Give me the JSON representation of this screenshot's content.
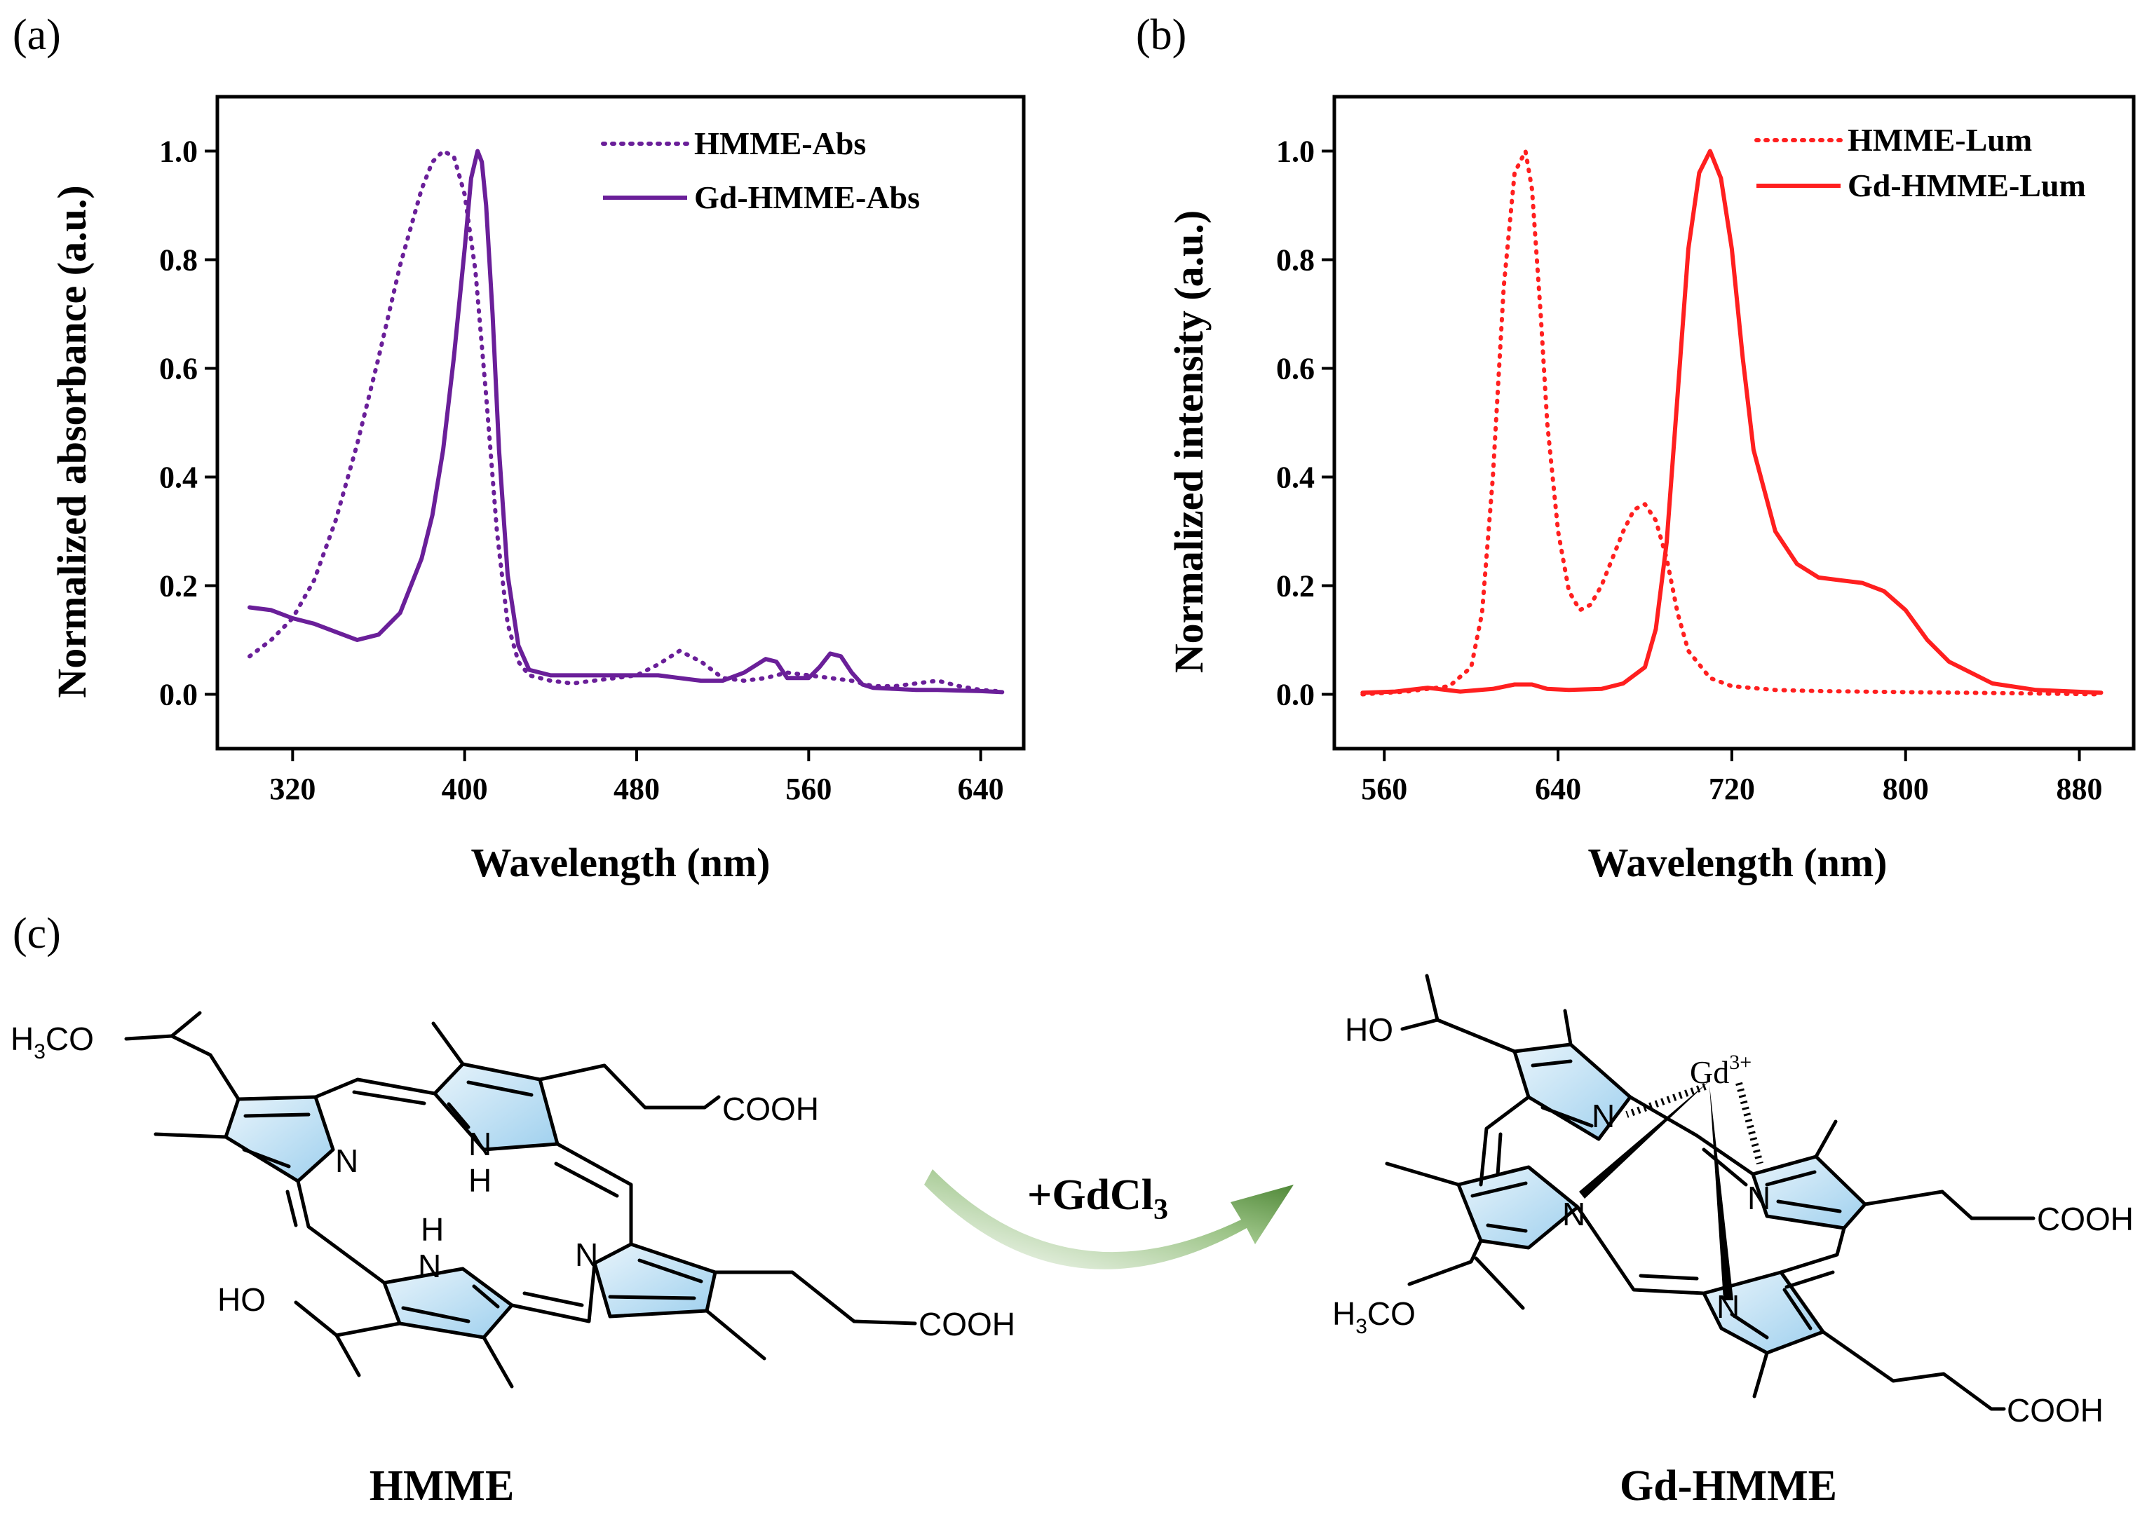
{
  "panels": {
    "a": "(a)",
    "b": "(b)",
    "c": "(c)"
  },
  "chart_data": [
    {
      "type": "line",
      "panel": "(a)",
      "xlabel": "Wavelength (nm)",
      "ylabel": "Normalized absorbance (a.u.)",
      "xlim": [
        285,
        660
      ],
      "ylim": [
        -0.1,
        1.1
      ],
      "xticks": [
        320,
        400,
        480,
        560,
        640
      ],
      "yticks": [
        0.0,
        0.2,
        0.4,
        0.6,
        0.8,
        1.0
      ],
      "legend_position": "top-right",
      "series": [
        {
          "name": "HMME-Abs",
          "style": "dotted",
          "color": "#6a1f99",
          "x": [
            300,
            310,
            320,
            330,
            340,
            350,
            360,
            370,
            380,
            385,
            390,
            395,
            400,
            405,
            410,
            415,
            420,
            425,
            430,
            440,
            450,
            460,
            470,
            480,
            490,
            500,
            510,
            520,
            530,
            540,
            550,
            560,
            570,
            580,
            590,
            600,
            610,
            620,
            630,
            640,
            650
          ],
          "y": [
            0.07,
            0.1,
            0.14,
            0.21,
            0.32,
            0.46,
            0.62,
            0.79,
            0.93,
            0.98,
            1.0,
            0.99,
            0.92,
            0.78,
            0.55,
            0.3,
            0.13,
            0.06,
            0.035,
            0.025,
            0.02,
            0.025,
            0.03,
            0.035,
            0.055,
            0.08,
            0.06,
            0.03,
            0.025,
            0.03,
            0.04,
            0.035,
            0.03,
            0.025,
            0.015,
            0.015,
            0.02,
            0.025,
            0.015,
            0.008,
            0.005
          ]
        },
        {
          "name": "Gd-HMME-Abs",
          "style": "solid",
          "color": "#6a1f99",
          "x": [
            300,
            310,
            320,
            330,
            340,
            350,
            360,
            370,
            380,
            385,
            390,
            395,
            400,
            403,
            406,
            408,
            410,
            413,
            416,
            420,
            425,
            430,
            440,
            450,
            460,
            470,
            480,
            490,
            500,
            510,
            520,
            530,
            540,
            545,
            550,
            560,
            565,
            570,
            575,
            580,
            585,
            590,
            600,
            610,
            620,
            630,
            640,
            650
          ],
          "y": [
            0.16,
            0.155,
            0.14,
            0.13,
            0.115,
            0.1,
            0.11,
            0.15,
            0.25,
            0.33,
            0.45,
            0.62,
            0.82,
            0.95,
            1.0,
            0.98,
            0.9,
            0.7,
            0.45,
            0.22,
            0.09,
            0.045,
            0.035,
            0.035,
            0.035,
            0.035,
            0.035,
            0.035,
            0.03,
            0.025,
            0.025,
            0.04,
            0.065,
            0.06,
            0.03,
            0.03,
            0.05,
            0.075,
            0.07,
            0.04,
            0.018,
            0.012,
            0.01,
            0.008,
            0.008,
            0.007,
            0.006,
            0.004
          ]
        }
      ]
    },
    {
      "type": "line",
      "panel": "(b)",
      "xlabel": "Wavelength (nm)",
      "ylabel": "Normalized intensity (a.u.)",
      "xlim": [
        537,
        905
      ],
      "ylim": [
        -0.1,
        1.1
      ],
      "xticks": [
        560,
        640,
        720,
        800,
        880
      ],
      "yticks": [
        0.0,
        0.2,
        0.4,
        0.6,
        0.8,
        1.0
      ],
      "legend_position": "top-right",
      "series": [
        {
          "name": "HMME-Lum",
          "style": "dotted",
          "color": "#ff1f1f",
          "x": [
            550,
            570,
            590,
            600,
            605,
            610,
            615,
            620,
            625,
            628,
            632,
            635,
            640,
            645,
            650,
            655,
            660,
            665,
            670,
            675,
            680,
            685,
            690,
            695,
            700,
            710,
            720,
            740,
            760,
            800,
            850,
            890
          ],
          "y": [
            0.0,
            0.005,
            0.015,
            0.05,
            0.15,
            0.4,
            0.75,
            0.96,
            1.0,
            0.93,
            0.7,
            0.5,
            0.3,
            0.19,
            0.155,
            0.165,
            0.2,
            0.25,
            0.3,
            0.34,
            0.35,
            0.32,
            0.25,
            0.15,
            0.08,
            0.03,
            0.015,
            0.008,
            0.006,
            0.004,
            0.002,
            0.0
          ]
        },
        {
          "name": "Gd-HMME-Lum",
          "style": "solid",
          "color": "#ff1f1f",
          "x": [
            550,
            565,
            580,
            595,
            610,
            620,
            628,
            635,
            645,
            660,
            670,
            680,
            685,
            690,
            695,
            700,
            705,
            710,
            715,
            720,
            725,
            730,
            740,
            750,
            760,
            770,
            780,
            790,
            800,
            810,
            820,
            840,
            860,
            890
          ],
          "y": [
            0.003,
            0.005,
            0.012,
            0.005,
            0.01,
            0.018,
            0.018,
            0.01,
            0.008,
            0.01,
            0.02,
            0.05,
            0.12,
            0.28,
            0.55,
            0.82,
            0.96,
            1.0,
            0.95,
            0.82,
            0.62,
            0.45,
            0.3,
            0.24,
            0.215,
            0.21,
            0.205,
            0.19,
            0.155,
            0.1,
            0.06,
            0.02,
            0.008,
            0.003
          ]
        }
      ]
    }
  ],
  "scheme": {
    "reagent_main": "+GdCl",
    "reagent_sub": "3",
    "left": {
      "name": "HMME",
      "h3co_h": "H",
      "h3co_3": "3",
      "h3co_co": "CO",
      "cooh_top": "COOH",
      "cooh_right": "COOH",
      "ho": "HO",
      "n_left": "N",
      "nh_top_n": "N",
      "nh_top_h": "H",
      "nh_bottom_h": "H",
      "nh_bottom_n": "N",
      "n_right": "N"
    },
    "right": {
      "name": "Gd-HMME",
      "ho": "HO",
      "gd": "Gd",
      "gd_charge": "3+",
      "n_a": "N",
      "n_b": "N",
      "n_c": "N",
      "n_d": "N",
      "h3co_h": "H",
      "h3co_3": "3",
      "h3co_co": "CO",
      "cooh_1": "COOH",
      "cooh_2": "COOH"
    }
  }
}
